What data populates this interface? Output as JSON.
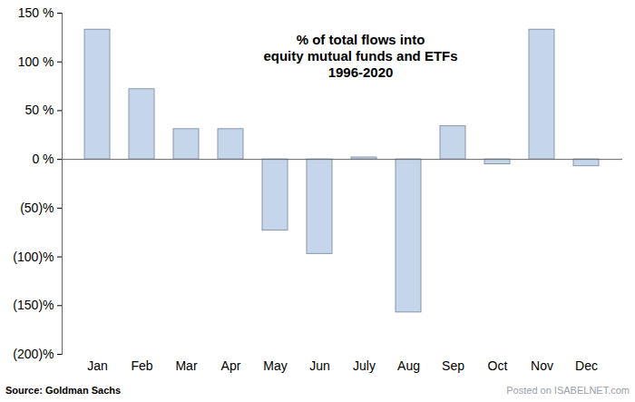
{
  "chart_data": {
    "type": "bar",
    "title": "% of total flows into\nequity mutual funds and ETFs\n1996-2020",
    "categories": [
      "Jan",
      "Feb",
      "Mar",
      "Apr",
      "May",
      "Jun",
      "July",
      "Aug",
      "Sep",
      "Oct",
      "Nov",
      "Dec"
    ],
    "values": [
      133,
      72,
      31,
      31,
      -73,
      -97,
      2,
      -157,
      34,
      -5,
      133,
      -7
    ],
    "color": "#c6d6ea",
    "ylim": [
      -200,
      150
    ],
    "yticks": [
      {
        "value": -200,
        "label": "(200)%"
      },
      {
        "value": -150,
        "label": "(150)%"
      },
      {
        "value": -100,
        "label": "(100)%"
      },
      {
        "value": -50,
        "label": "(50)%"
      },
      {
        "value": 0,
        "label": "0 %"
      },
      {
        "value": 50,
        "label": "50 %"
      },
      {
        "value": 100,
        "label": "100 %"
      },
      {
        "value": 150,
        "label": "150 %"
      }
    ],
    "grid": false,
    "source": "Source: Goldman Sachs",
    "annotations": [
      "Posted on ISABELNET.com"
    ]
  }
}
